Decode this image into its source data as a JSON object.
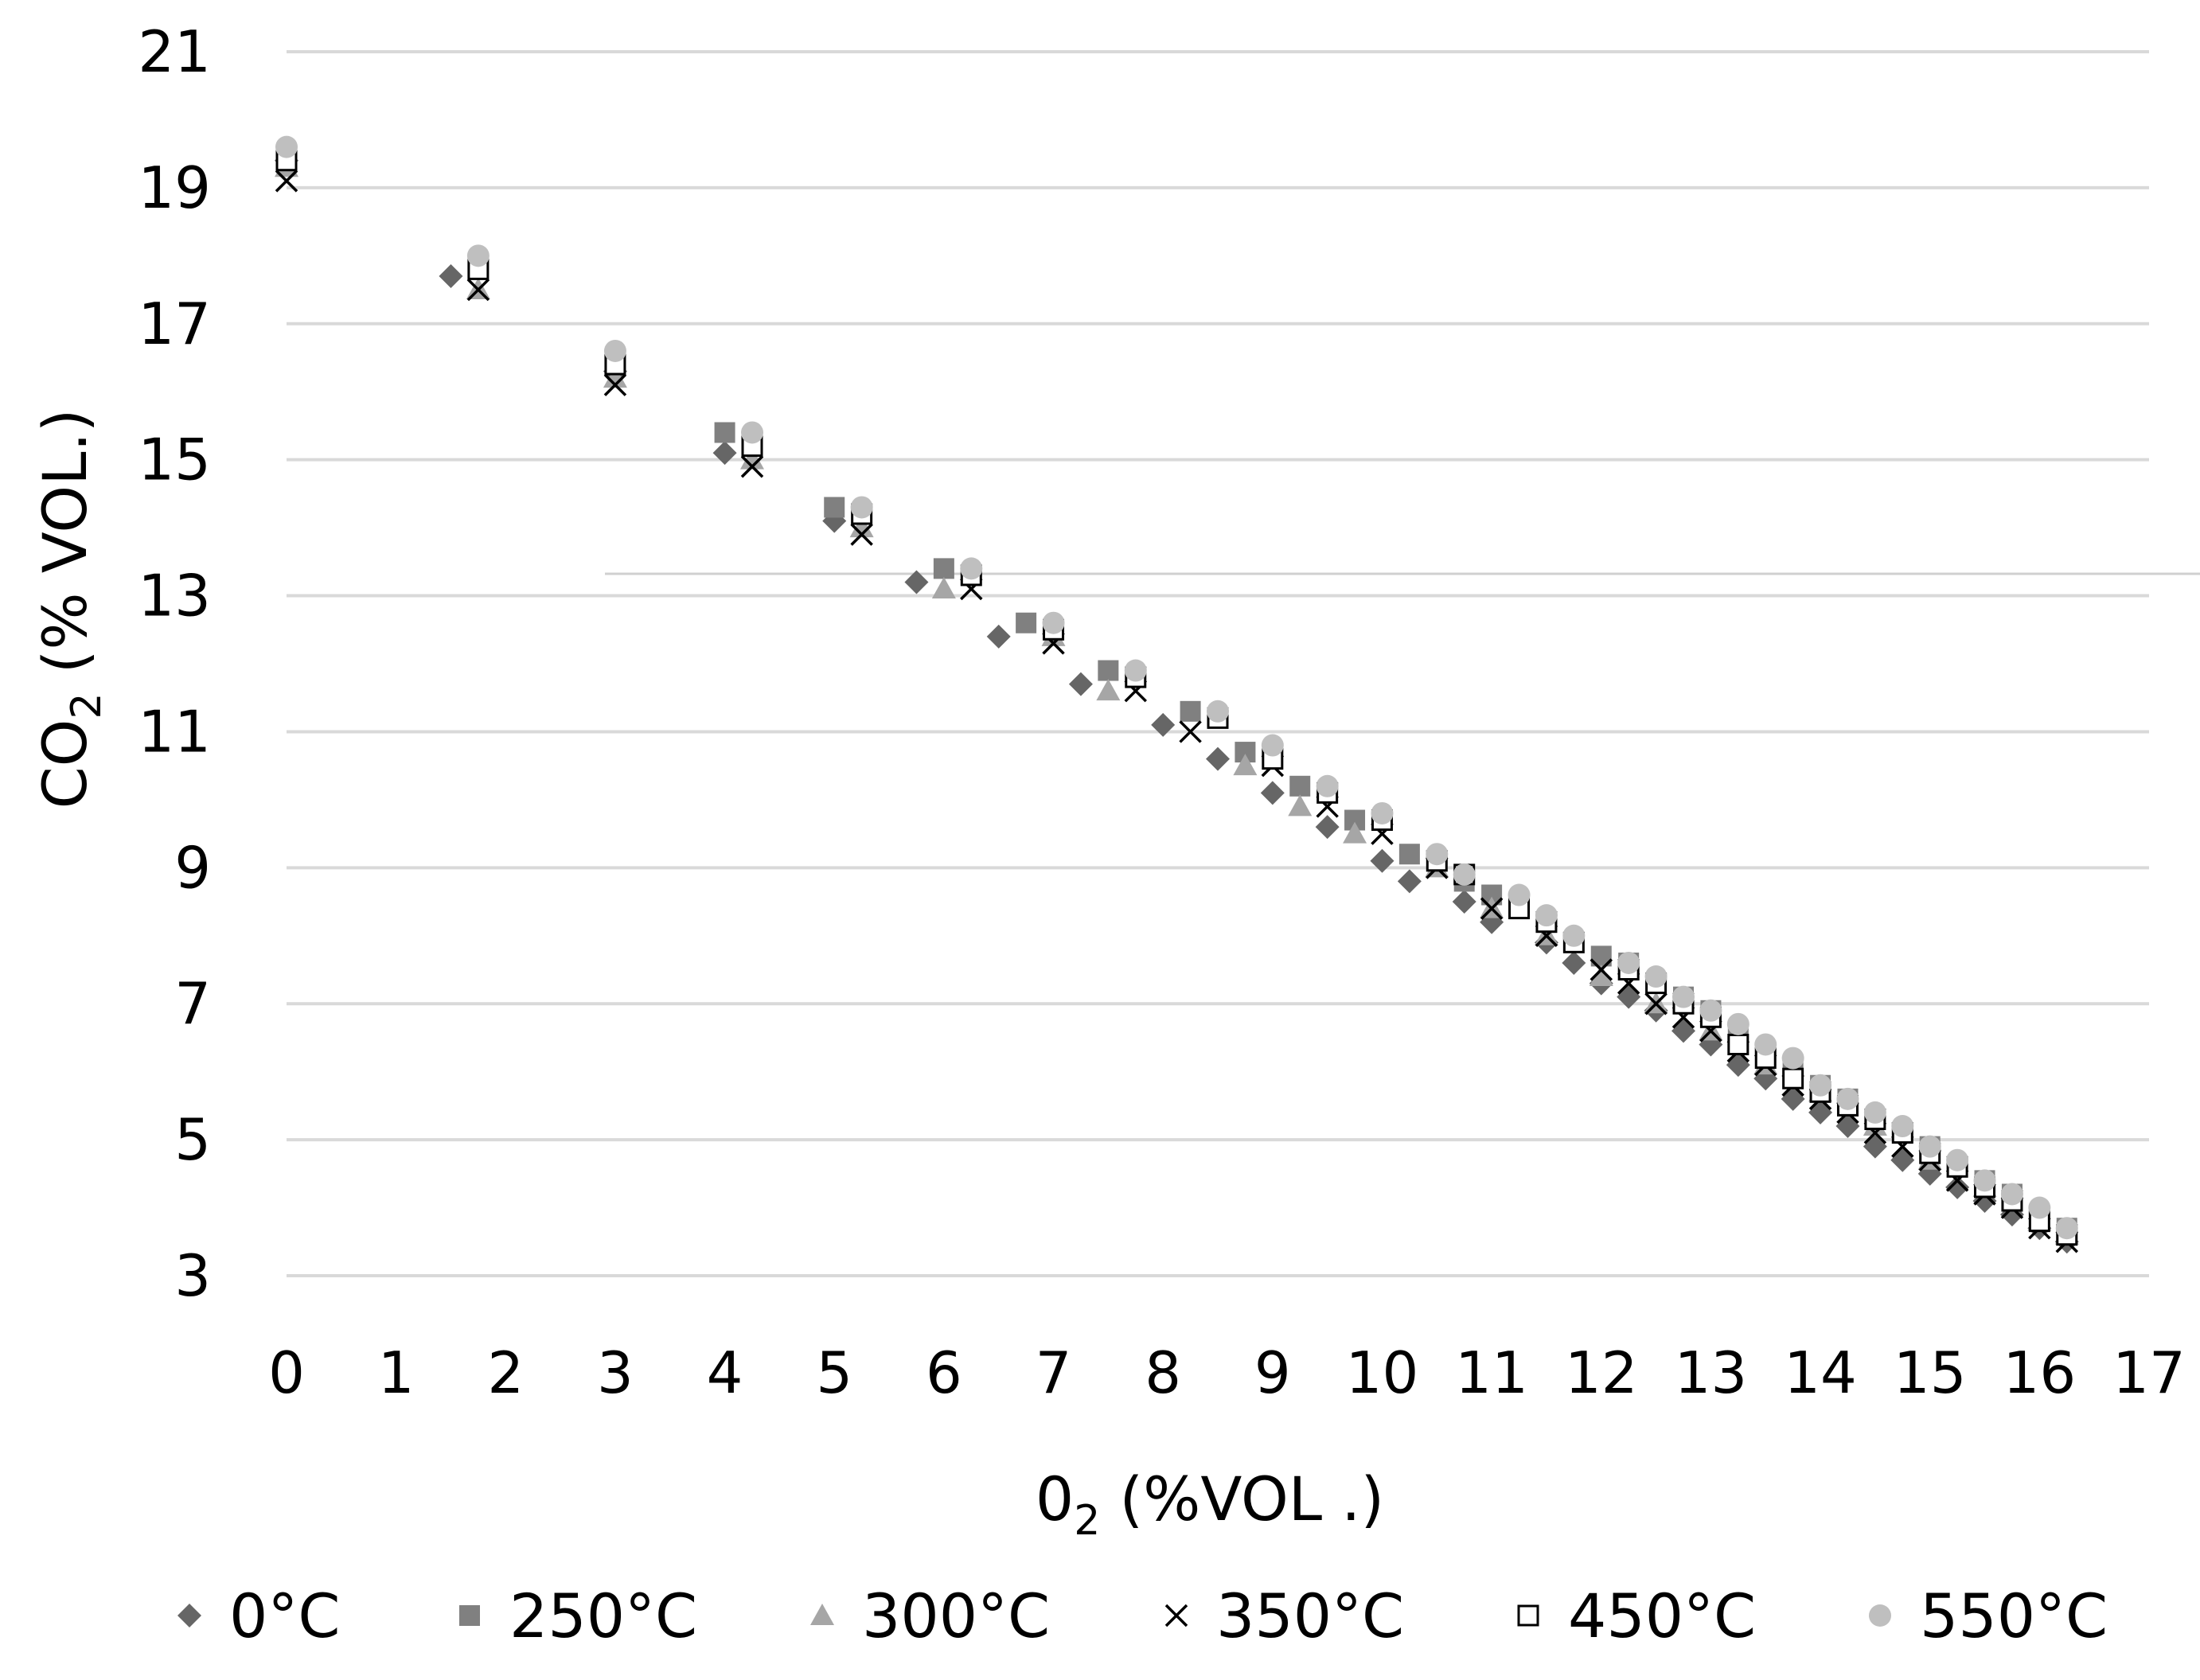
{
  "chart_data": {
    "type": "scatter",
    "title": "",
    "xlabel": {
      "main": "0",
      "sub": "2",
      "rest": " (%VOL .)"
    },
    "ylabel": {
      "main": "CO",
      "sub": "2",
      "rest": " (% VOL.)"
    },
    "xlim": [
      0,
      17
    ],
    "ylim": [
      3,
      21
    ],
    "x_ticks": [
      0,
      1,
      2,
      3,
      4,
      5,
      6,
      7,
      8,
      9,
      10,
      11,
      12,
      13,
      14,
      15,
      16,
      17
    ],
    "y_ticks": [
      3,
      5,
      7,
      9,
      11,
      13,
      15,
      17,
      19,
      21
    ],
    "grid": true,
    "legend_position": "bottom",
    "colors": {
      "dark": "#666666",
      "mid": "#808080",
      "light": "#a6a6a6",
      "lighter": "#bfbfbf",
      "black": "#000000",
      "grid": "#d9d9d9"
    },
    "series": [
      {
        "name": "0°C",
        "marker": "diamond",
        "x": [
          0,
          1.5,
          3,
          4,
          5,
          5.75,
          6.5,
          7.25,
          8,
          8.5,
          9,
          9.5,
          10,
          10.25,
          10.75,
          11,
          11.5,
          11.75,
          12,
          12.25,
          12.5,
          12.75,
          13,
          13.25,
          13.5,
          13.75,
          14,
          14.25,
          14.5,
          14.75,
          15,
          15.25,
          15.5,
          15.75,
          16,
          16.25
        ],
        "y": [
          19.4,
          17.7,
          16.3,
          15.1,
          14.1,
          13.2,
          12.4,
          11.7,
          11.1,
          10.6,
          10.1,
          9.6,
          9.1,
          8.8,
          8.5,
          8.2,
          7.9,
          7.6,
          7.3,
          7.1,
          6.9,
          6.6,
          6.4,
          6.1,
          5.9,
          5.6,
          5.4,
          5.2,
          4.9,
          4.7,
          4.5,
          4.3,
          4.1,
          3.9,
          3.7,
          3.5
        ]
      },
      {
        "name": "250°C",
        "marker": "square",
        "x": [
          0,
          1.75,
          3,
          4,
          5,
          6,
          6.75,
          7.5,
          8.25,
          8.75,
          9.25,
          9.75,
          10.25,
          10.75,
          11,
          11.25,
          11.5,
          11.75,
          12,
          12.25,
          12.5,
          12.75,
          13,
          13.25,
          13.5,
          13.75,
          14,
          14.25,
          14.5,
          14.75,
          15,
          15.25,
          15.5,
          15.75,
          16,
          16.25
        ],
        "y": [
          19.5,
          17.9,
          16.5,
          15.4,
          14.3,
          13.4,
          12.6,
          11.9,
          11.3,
          10.7,
          10.2,
          9.7,
          9.2,
          8.8,
          8.6,
          8.5,
          8.2,
          7.9,
          7.7,
          7.6,
          7.3,
          7.1,
          6.9,
          6.5,
          6.3,
          6.0,
          5.8,
          5.6,
          5.3,
          5.1,
          4.9,
          4.6,
          4.4,
          4.2,
          3.9,
          3.7
        ]
      },
      {
        "name": "300°C",
        "marker": "triangle",
        "x": [
          0,
          1.75,
          3,
          4.25,
          5.25,
          6,
          7,
          7.5,
          8.75,
          9.25,
          9.75,
          10.5,
          11,
          11.5,
          12,
          12.5,
          13,
          13.5,
          14,
          14.5,
          15,
          15.5,
          16,
          16.25
        ],
        "y": [
          19.3,
          17.5,
          16.2,
          15.0,
          14.0,
          13.1,
          12.4,
          11.6,
          10.5,
          9.9,
          9.5,
          9.0,
          8.4,
          8.0,
          7.4,
          7.0,
          6.6,
          6.1,
          5.7,
          5.2,
          4.7,
          4.3,
          3.8,
          3.6
        ]
      },
      {
        "name": "350°C",
        "marker": "x",
        "x": [
          0,
          1.75,
          3,
          4.25,
          5.25,
          6.25,
          7,
          7.75,
          8.25,
          9,
          9.5,
          10,
          10.5,
          11,
          11.5,
          12,
          12.25,
          12.5,
          12.75,
          13,
          13.25,
          13.5,
          13.75,
          14,
          14.25,
          14.5,
          14.75,
          15,
          15.25,
          15.5,
          15.75,
          16,
          16.25
        ],
        "y": [
          19.1,
          17.5,
          16.1,
          14.9,
          13.9,
          13.1,
          12.3,
          11.6,
          11.0,
          10.5,
          9.9,
          9.5,
          9.0,
          8.4,
          8.0,
          7.5,
          7.3,
          7.0,
          6.8,
          6.6,
          6.3,
          6.1,
          5.8,
          5.6,
          5.4,
          5.1,
          4.9,
          4.7,
          4.4,
          4.2,
          4.0,
          3.7,
          3.5
        ]
      },
      {
        "name": "450°C",
        "marker": "square-open",
        "x": [
          0,
          1.75,
          3,
          4.25,
          5.25,
          6.25,
          7,
          7.75,
          8.5,
          9,
          9.5,
          10,
          10.5,
          10.75,
          11.25,
          11.5,
          11.75,
          12.25,
          12.5,
          12.75,
          13,
          13.25,
          13.5,
          13.75,
          14,
          14.25,
          14.5,
          14.75,
          15,
          15.25,
          15.5,
          15.75,
          16,
          16.25
        ],
        "y": [
          19.4,
          17.8,
          16.4,
          15.2,
          14.2,
          13.3,
          12.5,
          11.8,
          11.2,
          10.6,
          10.1,
          9.7,
          9.1,
          8.9,
          8.4,
          8.2,
          7.9,
          7.5,
          7.3,
          7.0,
          6.8,
          6.4,
          6.2,
          5.9,
          5.7,
          5.5,
          5.3,
          5.1,
          4.8,
          4.6,
          4.3,
          4.1,
          3.8,
          3.6
        ]
      },
      {
        "name": "550°C",
        "marker": "circle",
        "x": [
          0,
          1.75,
          3,
          4.25,
          5.25,
          6.25,
          7,
          7.75,
          8.5,
          9,
          9.5,
          10,
          10.5,
          10.75,
          11.25,
          11.5,
          11.75,
          12.25,
          12.5,
          12.75,
          13,
          13.25,
          13.5,
          13.75,
          14,
          14.25,
          14.5,
          14.75,
          15,
          15.25,
          15.5,
          15.75,
          16,
          16.25
        ],
        "y": [
          19.6,
          18.0,
          16.6,
          15.4,
          14.3,
          13.4,
          12.6,
          11.9,
          11.3,
          10.8,
          10.2,
          9.8,
          9.2,
          8.9,
          8.6,
          8.3,
          8.0,
          7.6,
          7.4,
          7.1,
          6.9,
          6.7,
          6.4,
          6.2,
          5.8,
          5.6,
          5.4,
          5.2,
          4.9,
          4.7,
          4.4,
          4.2,
          4.0,
          3.7
        ]
      }
    ]
  }
}
